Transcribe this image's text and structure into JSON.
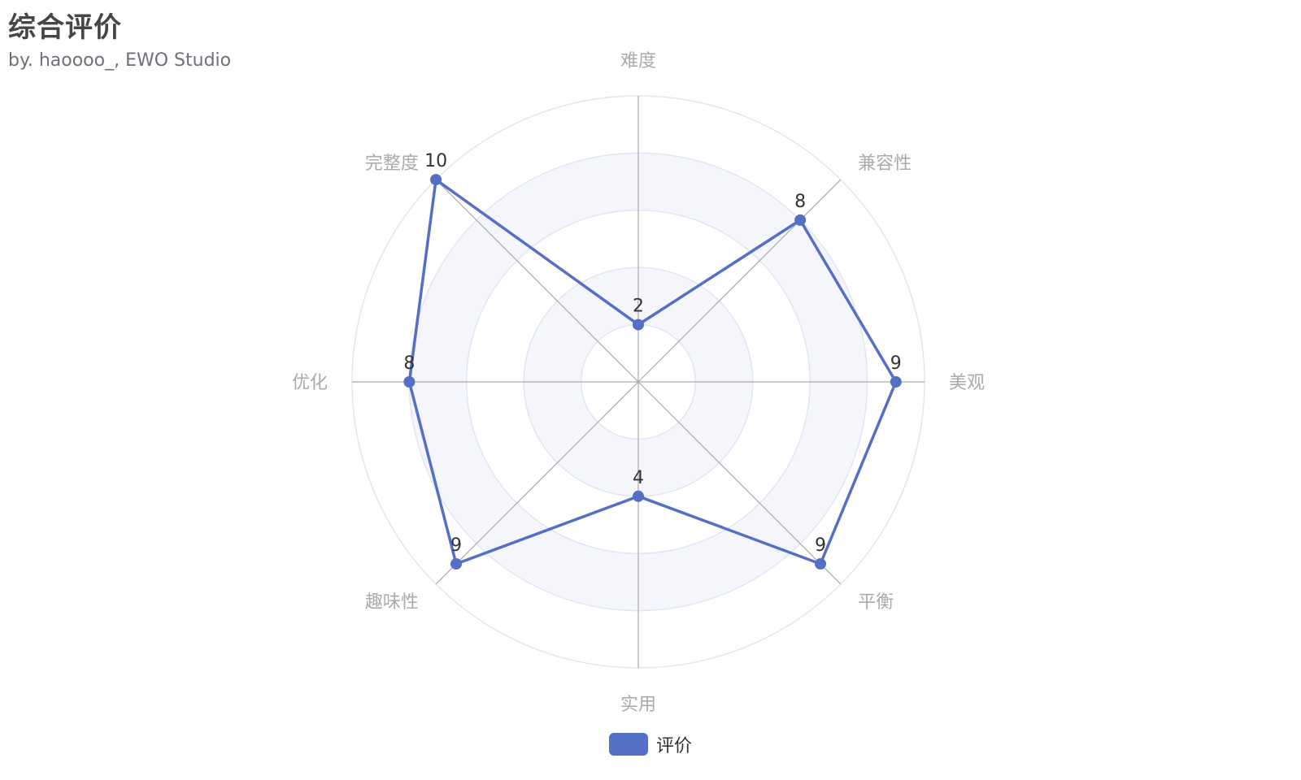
{
  "title": "综合评价",
  "subtitle": "by. haoooo_, EWO Studio",
  "chart_data": {
    "type": "radar",
    "indicators": [
      "难度",
      "兼容性",
      "美观",
      "平衡",
      "实用",
      "趣味性",
      "优化",
      "完整度"
    ],
    "max": 10,
    "series": [
      {
        "name": "评价",
        "values": [
          2,
          8,
          9,
          9,
          4,
          9,
          8,
          10
        ]
      }
    ],
    "rings": 5,
    "legend_position": "bottom-center",
    "colors": {
      "series": "#5470c6",
      "axis_label": "#aaaaaa",
      "split_line": "#e0e6f1",
      "axis_line": "#aaaaaa",
      "shade": "#f5f6fb"
    }
  },
  "legend": {
    "label": "评价"
  }
}
